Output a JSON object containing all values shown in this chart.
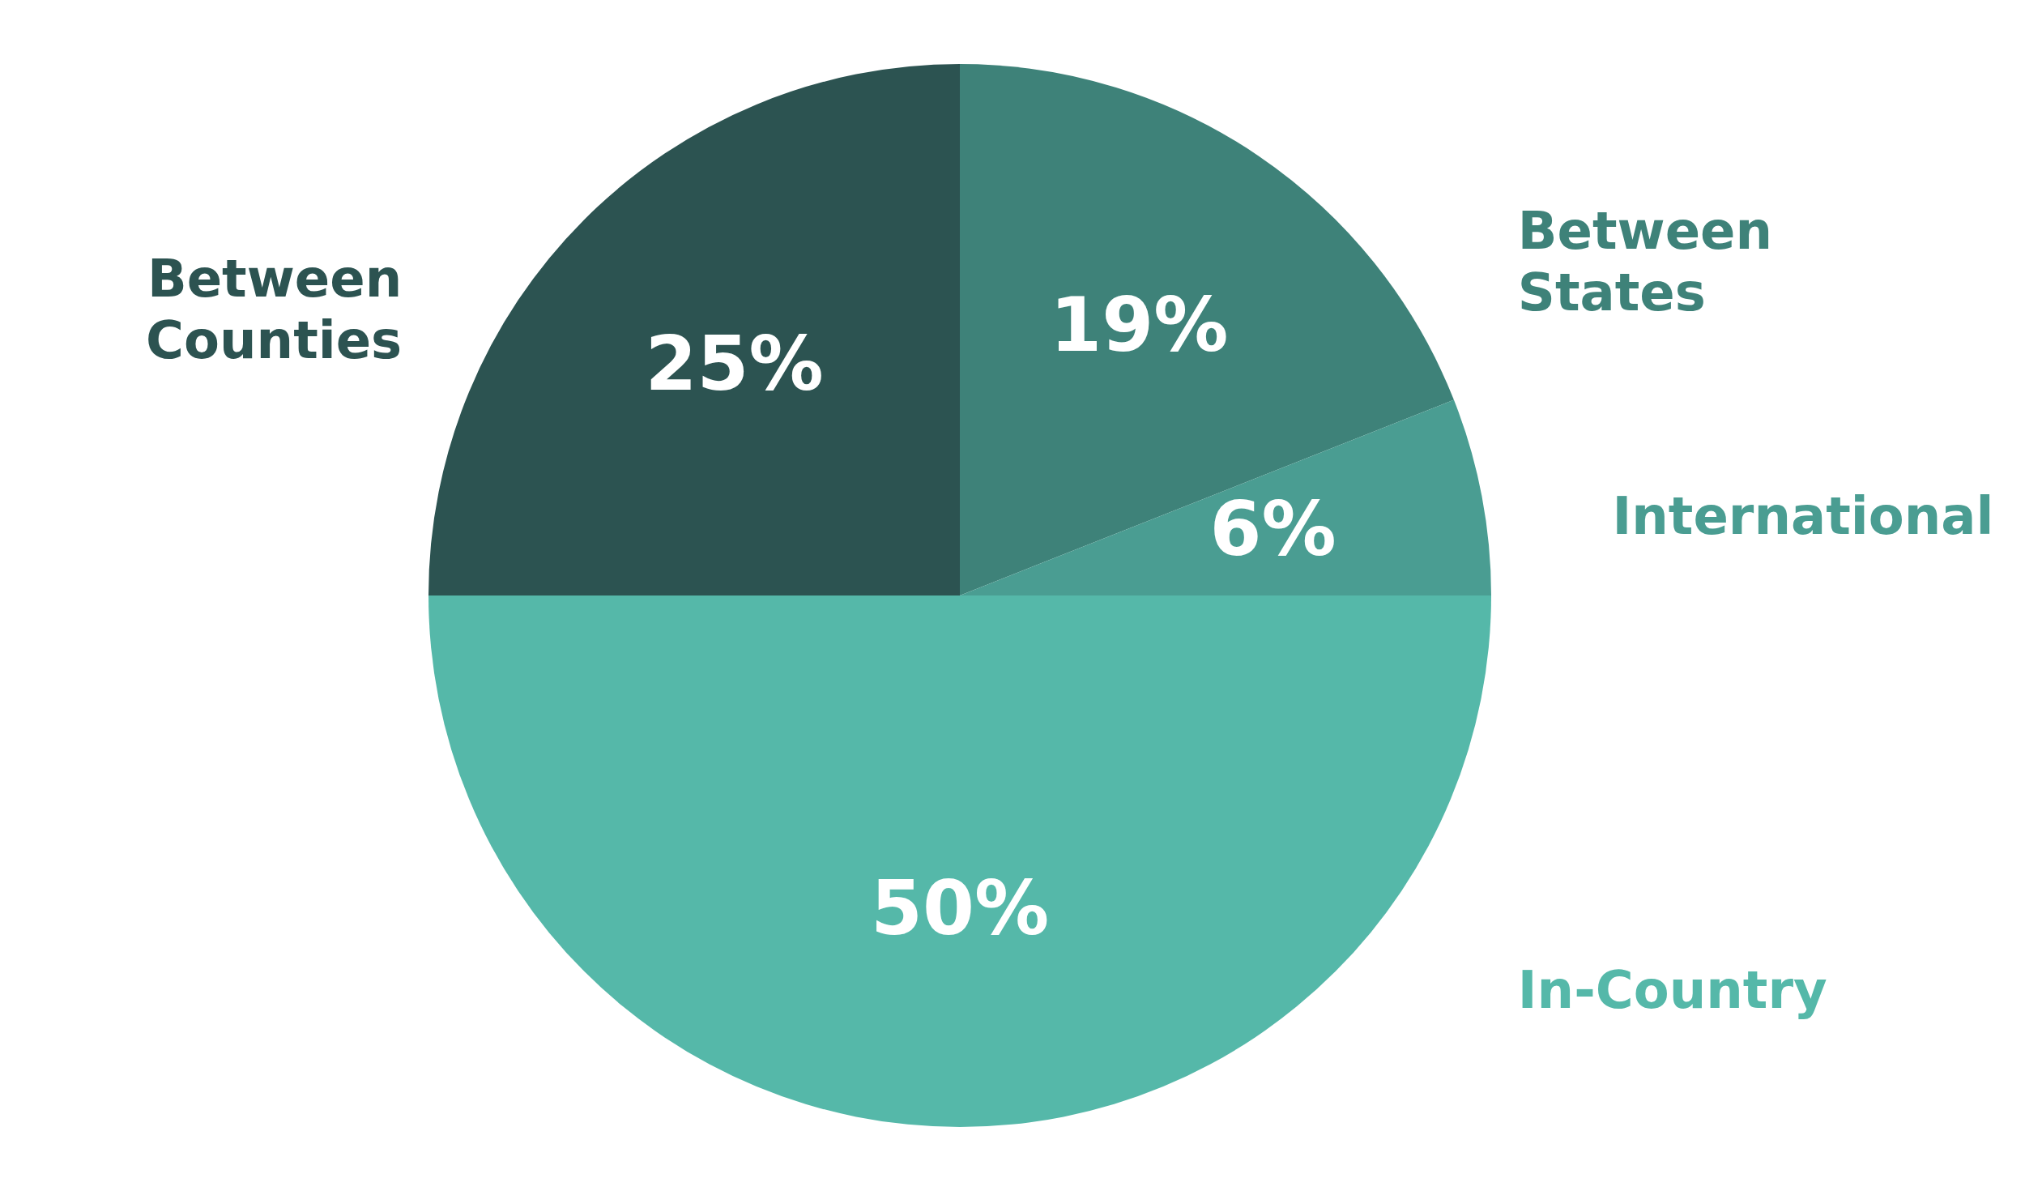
{
  "chart_data": {
    "type": "pie",
    "categories": [
      "Between States",
      "International",
      "In-Country",
      "Between Counties"
    ],
    "values": [
      19,
      6,
      50,
      25
    ],
    "value_labels": [
      "19%",
      "6%",
      "50%",
      "25%"
    ],
    "colors": [
      "#3e8279",
      "#4a9d92",
      "#55b8a9",
      "#2c5351"
    ]
  }
}
